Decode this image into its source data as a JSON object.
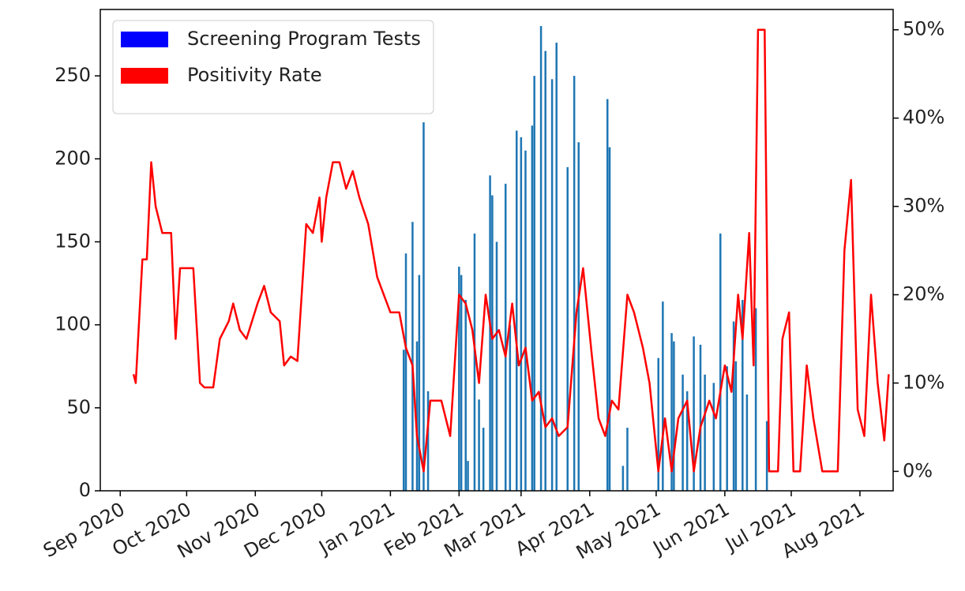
{
  "chart_data": {
    "type": "bar-line",
    "xlim": [
      "2020-08-23",
      "2021-08-16"
    ],
    "xticks": [
      {
        "value": "2020-09-01",
        "label": "Sep 2020"
      },
      {
        "value": "2020-10-01",
        "label": "Oct 2020"
      },
      {
        "value": "2020-11-01",
        "label": "Nov 2020"
      },
      {
        "value": "2020-12-01",
        "label": "Dec 2020"
      },
      {
        "value": "2021-01-01",
        "label": "Jan 2021"
      },
      {
        "value": "2021-02-01",
        "label": "Feb 2021"
      },
      {
        "value": "2021-03-01",
        "label": "Mar 2021"
      },
      {
        "value": "2021-04-01",
        "label": "Apr 2021"
      },
      {
        "value": "2021-05-01",
        "label": "May 2021"
      },
      {
        "value": "2021-06-01",
        "label": "Jun 2021"
      },
      {
        "value": "2021-07-01",
        "label": "Jul 2021"
      },
      {
        "value": "2021-08-01",
        "label": "Aug 2021"
      }
    ],
    "ylim": [
      0,
      290
    ],
    "yticks": [
      0,
      50,
      100,
      150,
      200,
      250
    ],
    "y2lim": [
      -2.2,
      52.3
    ],
    "y2ticks": [
      {
        "value": 0,
        "label": "0%"
      },
      {
        "value": 10,
        "label": "10%"
      },
      {
        "value": 20,
        "label": "20%"
      },
      {
        "value": 30,
        "label": "30%"
      },
      {
        "value": 40,
        "label": "40%"
      },
      {
        "value": 50,
        "label": "50%"
      }
    ],
    "legend": "upper left",
    "series": [
      {
        "name": "Screening Program Tests",
        "type": "bar",
        "color": "#1f77b4",
        "legend_color": "#0000ff",
        "x": [
          "2021-01-07",
          "2021-01-08",
          "2021-01-11",
          "2021-01-13",
          "2021-01-14",
          "2021-01-16",
          "2021-01-18",
          "2021-02-01",
          "2021-02-02",
          "2021-02-04",
          "2021-02-05",
          "2021-02-08",
          "2021-02-10",
          "2021-02-12",
          "2021-02-15",
          "2021-02-16",
          "2021-02-18",
          "2021-02-22",
          "2021-02-24",
          "2021-02-27",
          "2021-03-01",
          "2021-03-03",
          "2021-03-06",
          "2021-03-07",
          "2021-03-10",
          "2021-03-12",
          "2021-03-15",
          "2021-03-17",
          "2021-03-22",
          "2021-03-25",
          "2021-03-27",
          "2021-04-09",
          "2021-04-10",
          "2021-04-16",
          "2021-04-18",
          "2021-05-02",
          "2021-05-04",
          "2021-05-08",
          "2021-05-09",
          "2021-05-13",
          "2021-05-15",
          "2021-05-18",
          "2021-05-21",
          "2021-05-23",
          "2021-05-27",
          "2021-05-30",
          "2021-06-02",
          "2021-06-05",
          "2021-06-06",
          "2021-06-09",
          "2021-06-11",
          "2021-06-15",
          "2021-06-20"
        ],
        "values": [
          85,
          143,
          162,
          90,
          130,
          222,
          60,
          135,
          130,
          115,
          18,
          155,
          55,
          38,
          190,
          178,
          150,
          185,
          100,
          217,
          213,
          205,
          220,
          250,
          280,
          265,
          248,
          270,
          195,
          250,
          210,
          236,
          207,
          15,
          38,
          80,
          114,
          95,
          90,
          70,
          60,
          93,
          88,
          70,
          65,
          155,
          75,
          102,
          78,
          115,
          58,
          110,
          42
        ]
      },
      {
        "name": "Positivity Rate",
        "type": "line",
        "color": "#ff0000",
        "legend_color": "#ff0000",
        "axis": "y2",
        "x": [
          "2020-09-07",
          "2020-09-08",
          "2020-09-11",
          "2020-09-13",
          "2020-09-15",
          "2020-09-17",
          "2020-09-20",
          "2020-09-24",
          "2020-09-26",
          "2020-09-28",
          "2020-10-04",
          "2020-10-07",
          "2020-10-09",
          "2020-10-13",
          "2020-10-16",
          "2020-10-20",
          "2020-10-22",
          "2020-10-25",
          "2020-10-28",
          "2020-11-02",
          "2020-11-05",
          "2020-11-08",
          "2020-11-12",
          "2020-11-14",
          "2020-11-17",
          "2020-11-20",
          "2020-11-24",
          "2020-11-27",
          "2020-11-30",
          "2020-12-01",
          "2020-12-03",
          "2020-12-06",
          "2020-12-09",
          "2020-12-12",
          "2020-12-15",
          "2020-12-18",
          "2020-12-22",
          "2020-12-26",
          "2020-12-29",
          "2021-01-01",
          "2021-01-05",
          "2021-01-08",
          "2021-01-11",
          "2021-01-13",
          "2021-01-16",
          "2021-01-19",
          "2021-01-24",
          "2021-01-28",
          "2021-02-01",
          "2021-02-04",
          "2021-02-07",
          "2021-02-10",
          "2021-02-13",
          "2021-02-16",
          "2021-02-19",
          "2021-02-22",
          "2021-02-25",
          "2021-02-28",
          "2021-03-03",
          "2021-03-06",
          "2021-03-09",
          "2021-03-12",
          "2021-03-15",
          "2021-03-18",
          "2021-03-22",
          "2021-03-26",
          "2021-03-29",
          "2021-04-02",
          "2021-04-05",
          "2021-04-08",
          "2021-04-11",
          "2021-04-14",
          "2021-04-18",
          "2021-04-21",
          "2021-04-25",
          "2021-04-28",
          "2021-05-02",
          "2021-05-05",
          "2021-05-08",
          "2021-05-11",
          "2021-05-15",
          "2021-05-18",
          "2021-05-21",
          "2021-05-25",
          "2021-05-28",
          "2021-06-01",
          "2021-06-04",
          "2021-06-07",
          "2021-06-09",
          "2021-06-12",
          "2021-06-14",
          "2021-06-16",
          "2021-06-19",
          "2021-06-21",
          "2021-06-25",
          "2021-06-27",
          "2021-06-30",
          "2021-07-02",
          "2021-07-05",
          "2021-07-08",
          "2021-07-11",
          "2021-07-15",
          "2021-07-22",
          "2021-07-25",
          "2021-07-28",
          "2021-07-31",
          "2021-08-03",
          "2021-08-06",
          "2021-08-09",
          "2021-08-12",
          "2021-08-14"
        ],
        "values": [
          11,
          10,
          24,
          24,
          35,
          30,
          27,
          27,
          15,
          23,
          23,
          10,
          9.5,
          9.5,
          15,
          17,
          19,
          16,
          15,
          19,
          21,
          18,
          17,
          12,
          13,
          12.5,
          28,
          27,
          31,
          26,
          31,
          35,
          35,
          32,
          34,
          31,
          28,
          22,
          20,
          18,
          18,
          14,
          12,
          4,
          0,
          8,
          8,
          4,
          20,
          19,
          16,
          10,
          20,
          15,
          16,
          13,
          19,
          12,
          14,
          8,
          9,
          5,
          6,
          4,
          5,
          18,
          23,
          13,
          6,
          4,
          8,
          7,
          20,
          18,
          14,
          10,
          0,
          6,
          0,
          6,
          8,
          0,
          5,
          8,
          6,
          12,
          9,
          20,
          15,
          27,
          12,
          50,
          50,
          0,
          0,
          15,
          18,
          0,
          0,
          12,
          6,
          0,
          0,
          25,
          33,
          7,
          4,
          20,
          10,
          3.5,
          11
        ]
      }
    ]
  }
}
